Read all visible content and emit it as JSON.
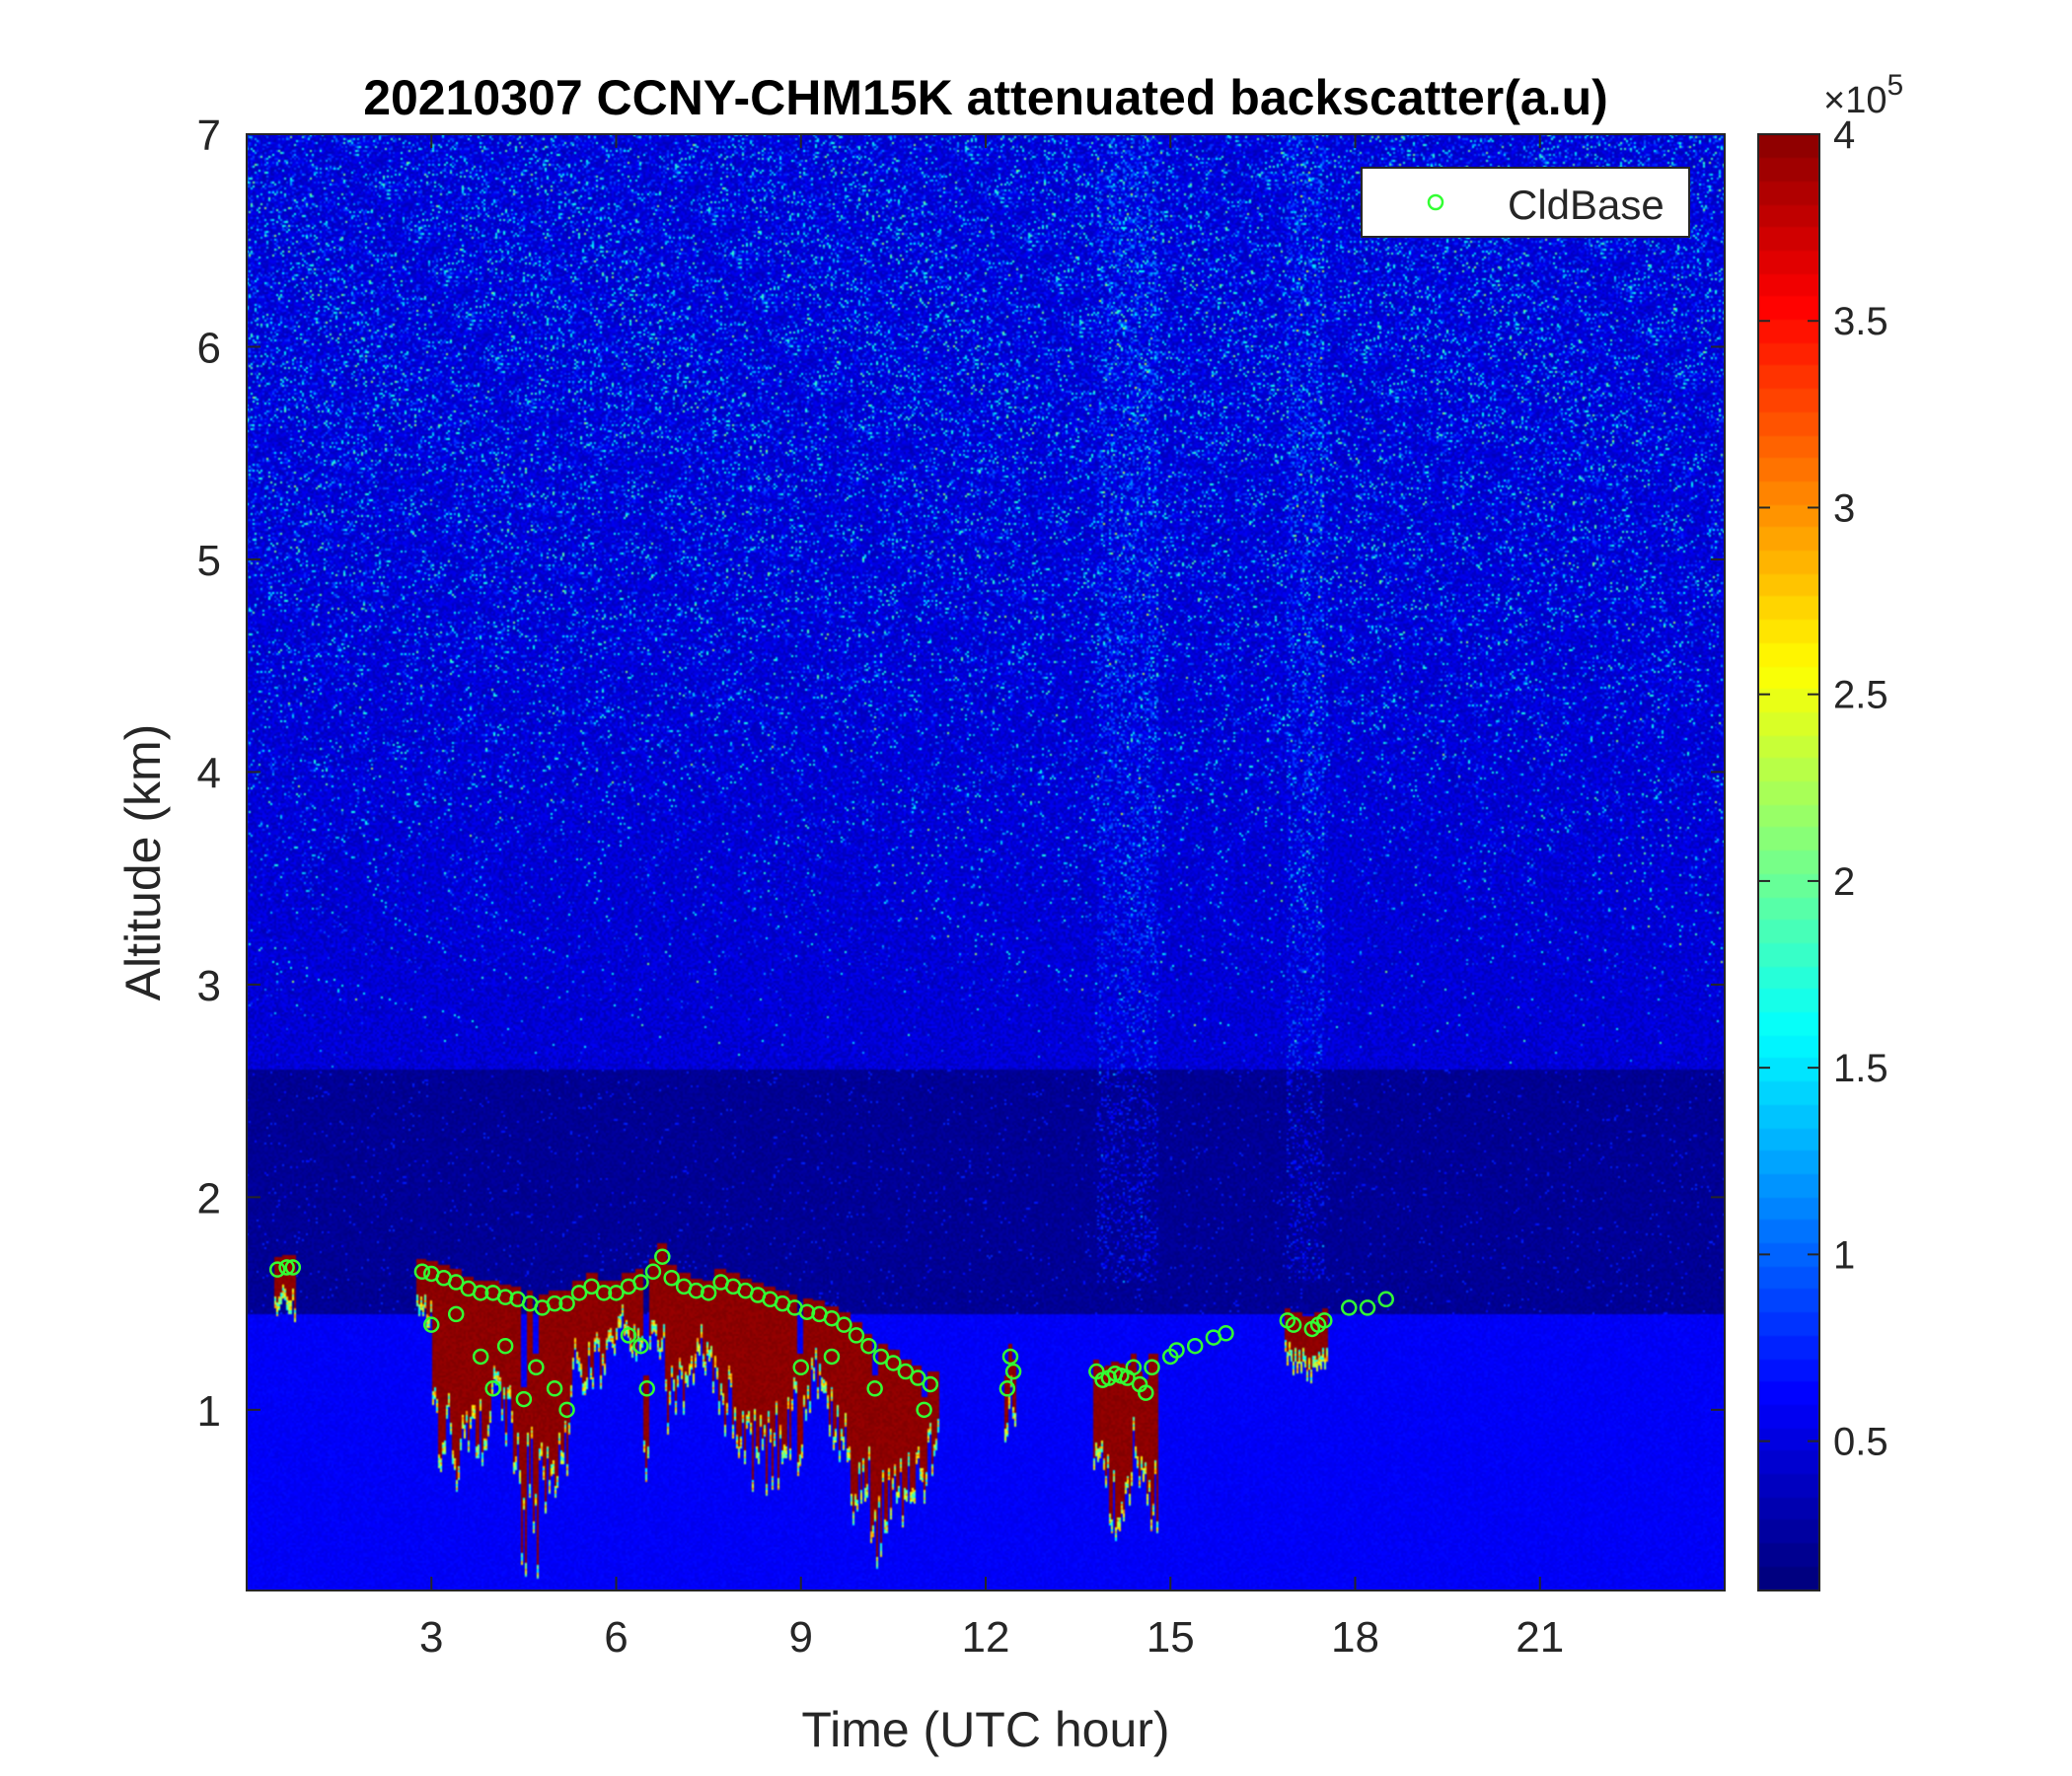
{
  "chart_data": {
    "type": "heatmap",
    "title": "20210307 CCNY-CHM15K attenuated backscatter(a.u)",
    "xlabel": "Time (UTC hour)",
    "ylabel": "Altitude (km)",
    "xlim": [
      0,
      24
    ],
    "ylim": [
      0.15,
      7
    ],
    "xticks": [
      3,
      6,
      9,
      12,
      15,
      18,
      21
    ],
    "xtick_labels": [
      "3",
      "6",
      "9",
      "12",
      "15",
      "18",
      "21"
    ],
    "yticks": [
      1,
      2,
      3,
      4,
      5,
      6,
      7
    ],
    "ytick_labels": [
      "1",
      "2",
      "3",
      "4",
      "5",
      "6",
      "7"
    ],
    "colorbar": {
      "colormap": "jet",
      "clim": [
        0.1,
        4
      ],
      "ticks": [
        0.5,
        1,
        1.5,
        2,
        2.5,
        3,
        3.5,
        4
      ],
      "tick_labels": [
        "0.5",
        "1",
        "1.5",
        "2",
        "2.5",
        "3",
        "3.5",
        "4"
      ],
      "exponent_label": "×10",
      "exponent_power": "5"
    },
    "legend": {
      "position": "top-right",
      "entries": [
        "CldBase"
      ]
    },
    "series": [
      {
        "name": "CldBase",
        "marker": "circle",
        "color": "#33ff33",
        "x": [
          0.5,
          0.65,
          0.75,
          2.85,
          3.0,
          3.2,
          3.4,
          3.6,
          3.8,
          4.0,
          4.2,
          4.4,
          4.6,
          4.8,
          5.0,
          5.2,
          5.4,
          5.6,
          5.8,
          6.0,
          6.2,
          6.4,
          6.6,
          6.75,
          6.9,
          7.1,
          7.3,
          7.5,
          7.7,
          7.9,
          8.1,
          8.3,
          8.5,
          8.7,
          8.9,
          9.1,
          9.3,
          9.5,
          9.7,
          9.9,
          10.1,
          10.3,
          10.5,
          10.7,
          10.9,
          11.1,
          3.0,
          3.4,
          3.8,
          4.0,
          4.2,
          4.5,
          4.7,
          5.0,
          5.2,
          6.2,
          6.4,
          6.5,
          9.0,
          9.5,
          10.2,
          11.0,
          12.4,
          12.45,
          12.35,
          13.8,
          13.9,
          14.0,
          14.1,
          14.2,
          14.3,
          14.4,
          14.5,
          14.6,
          14.7,
          15.0,
          15.1,
          15.4,
          15.7,
          15.9,
          16.9,
          17.0,
          17.3,
          17.4,
          17.5,
          17.9,
          18.2,
          18.5
        ],
        "y": [
          1.66,
          1.67,
          1.67,
          1.65,
          1.64,
          1.62,
          1.6,
          1.57,
          1.55,
          1.55,
          1.53,
          1.52,
          1.5,
          1.48,
          1.5,
          1.5,
          1.55,
          1.58,
          1.55,
          1.55,
          1.58,
          1.6,
          1.65,
          1.72,
          1.62,
          1.58,
          1.56,
          1.55,
          1.6,
          1.58,
          1.56,
          1.54,
          1.52,
          1.5,
          1.48,
          1.46,
          1.45,
          1.43,
          1.4,
          1.35,
          1.3,
          1.25,
          1.22,
          1.18,
          1.15,
          1.12,
          1.4,
          1.45,
          1.25,
          1.1,
          1.3,
          1.05,
          1.2,
          1.1,
          1.0,
          1.35,
          1.3,
          1.1,
          1.2,
          1.25,
          1.1,
          1.0,
          1.25,
          1.18,
          1.1,
          1.18,
          1.14,
          1.15,
          1.17,
          1.16,
          1.15,
          1.2,
          1.12,
          1.08,
          1.2,
          1.25,
          1.28,
          1.3,
          1.34,
          1.36,
          1.42,
          1.4,
          1.38,
          1.4,
          1.42,
          1.48,
          1.48,
          1.52
        ]
      }
    ]
  }
}
